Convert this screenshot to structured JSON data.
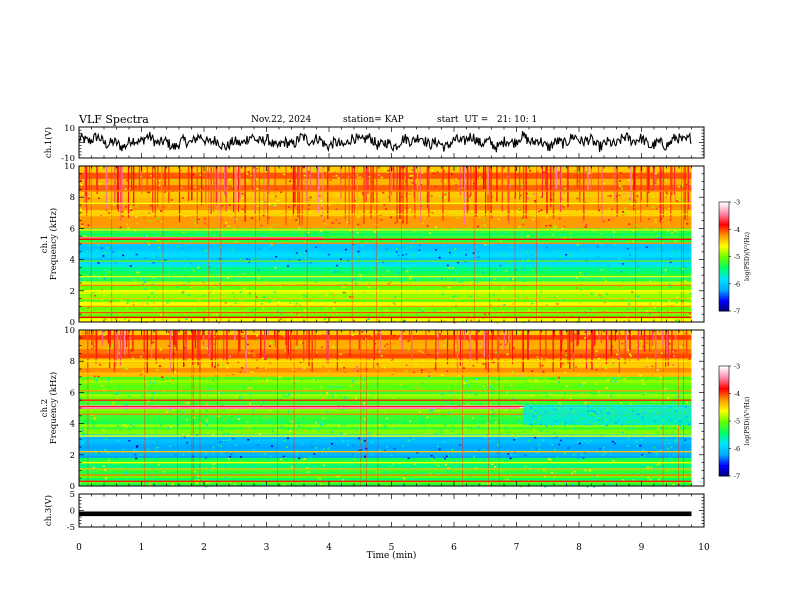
{
  "header": {
    "title": "VLF Spectra",
    "date": "Nov.22, 2024",
    "station": "station= KAP",
    "start": "start  UT =   21: 10: 1"
  },
  "colors": {
    "axis": "#000000",
    "colormap": [
      "#000070",
      "#0000ff",
      "#00aaff",
      "#00e5ff",
      "#00ff66",
      "#66ff00",
      "#ffff00",
      "#ff9900",
      "#ff0000",
      "#ff88aa",
      "#ffffff"
    ]
  },
  "chart_data": [
    {
      "type": "line",
      "ylabel": "ch.1(V)",
      "ylim": [
        -10,
        10
      ],
      "yticks": [
        "10",
        "-10"
      ],
      "xlim": [
        0,
        9.8
      ],
      "note": "waveform oscillating roughly between -6 and +7 V"
    },
    {
      "type": "heatmap",
      "ylabel": "ch.1\nFrequency (kHz)",
      "ylim": [
        0,
        10
      ],
      "yticks": [
        "0",
        "2",
        "4",
        "6",
        "8",
        "10"
      ],
      "xlim": [
        0,
        9.8
      ],
      "colorbar": {
        "label": "log(PSD)(V²/Hz)",
        "range": [
          -7,
          -3
        ],
        "ticks": [
          "-3",
          "-4",
          "-5",
          "-6",
          "-7"
        ]
      },
      "bands": [
        {
          "f_low": 6.0,
          "f_high": 10.0,
          "log_psd": -4.2
        },
        {
          "f_low": 5.1,
          "f_high": 6.0,
          "log_psd": -5.2
        },
        {
          "f_low": 3.6,
          "f_high": 5.0,
          "log_psd": -5.9
        },
        {
          "f_low": 2.6,
          "f_high": 3.6,
          "log_psd": -5.4
        },
        {
          "f_low": 0.0,
          "f_high": 2.6,
          "log_psd": -4.8
        }
      ]
    },
    {
      "type": "heatmap",
      "ylabel": "ch.2\nFrequency (kHz)",
      "ylim": [
        0,
        10
      ],
      "yticks": [
        "0",
        "2",
        "4",
        "6",
        "8",
        "10"
      ],
      "xlim": [
        0,
        9.8
      ],
      "colorbar": {
        "label": "log(PSD)(V²/Hz)",
        "range": [
          -7,
          -3
        ],
        "ticks": [
          "-3",
          "-4",
          "-5",
          "-6",
          "-7"
        ]
      },
      "bands": [
        {
          "f_low": 7.0,
          "f_high": 10.0,
          "log_psd": -4.2
        },
        {
          "f_low": 5.2,
          "f_high": 7.0,
          "log_psd": -5.0
        },
        {
          "f_low": 3.3,
          "f_high": 5.0,
          "log_psd": -5.1
        },
        {
          "f_low": 1.8,
          "f_high": 3.3,
          "log_psd": -6.0
        },
        {
          "f_low": 0.0,
          "f_high": 1.8,
          "log_psd": -5.2
        }
      ]
    },
    {
      "type": "line",
      "ylabel": "ch.3(V)",
      "ylim": [
        -5,
        5
      ],
      "yticks": [
        "5",
        "0",
        "-5"
      ],
      "xlim": [
        0,
        9.8
      ],
      "note": "flat thick trace near -1 V"
    }
  ],
  "xaxis": {
    "label": "Time  (min)",
    "ticks": [
      "0",
      "1",
      "2",
      "3",
      "4",
      "5",
      "6",
      "7",
      "8",
      "9",
      "10"
    ],
    "range": [
      0,
      10
    ]
  }
}
